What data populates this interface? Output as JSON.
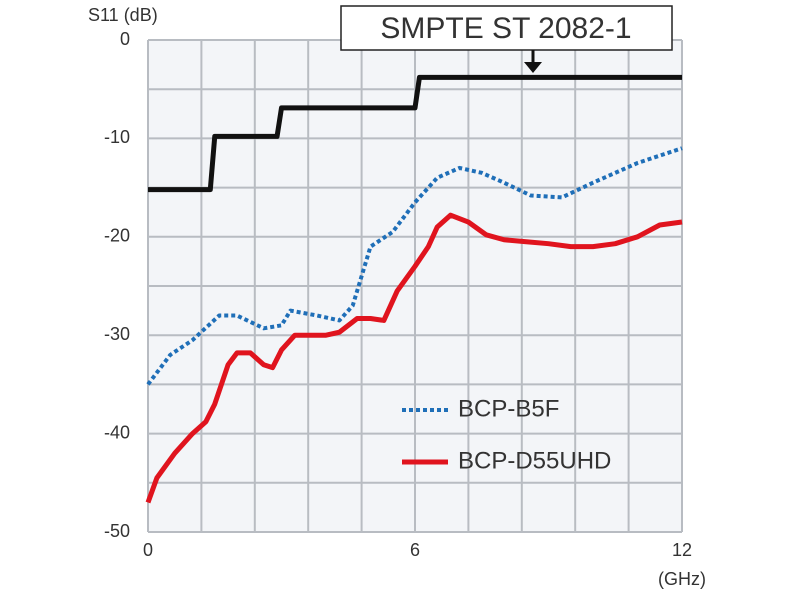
{
  "chart_data": {
    "type": "line",
    "y_axis_label": "S11 (dB)",
    "x_axis_label": "(GHz)",
    "annotation": "SMPTE ST 2082-1",
    "xlim": [
      0,
      12
    ],
    "xticks": [
      0,
      6,
      12
    ],
    "ylim": [
      -50,
      0
    ],
    "yticks": [
      0,
      -10,
      -20,
      -30,
      -40,
      -50
    ],
    "x_grid": [
      0,
      1.2,
      2.4,
      3.6,
      4.8,
      6,
      7.2,
      8.4,
      9.6,
      10.8,
      12
    ],
    "y_grid": [
      0,
      -5,
      -10,
      -15,
      -20,
      -25,
      -30,
      -35,
      -40,
      -45,
      -50
    ],
    "grid": true,
    "legend": "lower right",
    "series": [
      {
        "color": "#111111",
        "style": "solid",
        "x": [
          0,
          1.4,
          1.5,
          2.9,
          3.0,
          6.0,
          6.1,
          12
        ],
        "values": [
          -15.2,
          -15.2,
          -9.8,
          -9.8,
          -6.9,
          -6.9,
          -3.8,
          -3.8
        ]
      },
      {
        "name": "BCP-B5F",
        "color": "#1f6fb8",
        "style": "dotted",
        "x": [
          0,
          0.5,
          1,
          1.6,
          2,
          2.6,
          3,
          3.2,
          3.8,
          4.3,
          4.6,
          4.8,
          5,
          5.5,
          6,
          6.5,
          7,
          7.5,
          8,
          8.6,
          9.3,
          10,
          11,
          12
        ],
        "values": [
          -35,
          -32,
          -30.5,
          -28,
          -28,
          -29.3,
          -29,
          -27.5,
          -28,
          -28.5,
          -27,
          -24,
          -21,
          -19.5,
          -16.5,
          -14,
          -13,
          -13.5,
          -14.5,
          -15.8,
          -16,
          -14.5,
          -12.5,
          -11
        ]
      },
      {
        "name": "BCP-D55UHD",
        "color": "#e0141e",
        "style": "solid",
        "x": [
          0,
          0.2,
          0.6,
          1,
          1.3,
          1.5,
          1.8,
          2,
          2.3,
          2.6,
          2.8,
          3,
          3.3,
          4,
          4.3,
          4.7,
          5,
          5.3,
          5.6,
          6,
          6.3,
          6.5,
          6.8,
          7.2,
          7.6,
          8,
          8.5,
          9,
          9.5,
          10,
          10.5,
          11,
          11.5,
          12
        ],
        "values": [
          -47,
          -44.5,
          -42,
          -40,
          -38.8,
          -37,
          -33,
          -31.8,
          -31.8,
          -33,
          -33.3,
          -31.5,
          -30,
          -30,
          -29.7,
          -28.3,
          -28.3,
          -28.5,
          -25.5,
          -23,
          -21,
          -19,
          -17.8,
          -18.5,
          -19.8,
          -20.3,
          -20.5,
          -20.7,
          -21,
          -21,
          -20.7,
          -20,
          -18.8,
          -18.5
        ]
      }
    ]
  }
}
